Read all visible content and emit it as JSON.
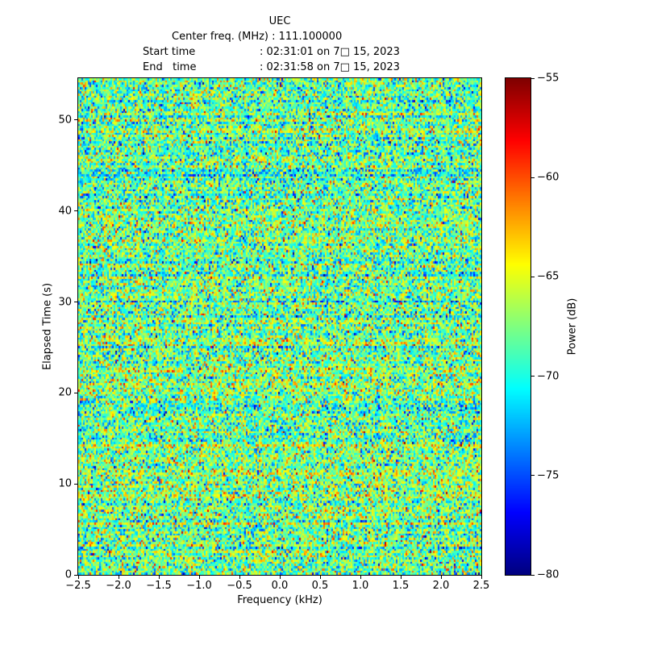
{
  "header": {
    "title": "UEC",
    "center_line": "Center freq. (MHz) : 111.100000",
    "start_label": "Start time",
    "start_value": ": 02:31:01 on 7□ 15, 2023",
    "end_label": "End   time",
    "end_value": ": 02:31:58 on 7□ 15, 2023"
  },
  "chart_data": {
    "type": "heatmap",
    "title": "UEC",
    "subtitle_lines": [
      "Center freq. (MHz) : 111.100000",
      "Start time            : 02:31:01 on 7□ 15, 2023",
      "End   time            : 02:31:58 on 7□ 15, 2023"
    ],
    "xlabel": "Frequency (kHz)",
    "ylabel": "Elapsed Time (s)",
    "xlim": [
      -2.5,
      2.5
    ],
    "ylim": [
      0,
      54.6
    ],
    "x_ticks": [
      {
        "value": -2.5,
        "label": "−2.5"
      },
      {
        "value": -2.0,
        "label": "−2.0"
      },
      {
        "value": -1.5,
        "label": "−1.5"
      },
      {
        "value": -1.0,
        "label": "−1.0"
      },
      {
        "value": -0.5,
        "label": "−0.5"
      },
      {
        "value": 0.0,
        "label": "0.0"
      },
      {
        "value": 0.5,
        "label": "0.5"
      },
      {
        "value": 1.0,
        "label": "1.0"
      },
      {
        "value": 1.5,
        "label": "1.5"
      },
      {
        "value": 2.0,
        "label": "2.0"
      },
      {
        "value": 2.5,
        "label": "2.5"
      }
    ],
    "y_ticks": [
      {
        "value": 0,
        "label": "0"
      },
      {
        "value": 10,
        "label": "10"
      },
      {
        "value": 20,
        "label": "20"
      },
      {
        "value": 30,
        "label": "30"
      },
      {
        "value": 40,
        "label": "40"
      },
      {
        "value": 50,
        "label": "50"
      }
    ],
    "colorbar": {
      "label": "Power (dB)",
      "colormap": "jet",
      "vmin": -80,
      "vmax": -55,
      "ticks": [
        {
          "value": -55,
          "label": "−55"
        },
        {
          "value": -60,
          "label": "−60"
        },
        {
          "value": -65,
          "label": "−65"
        },
        {
          "value": -70,
          "label": "−70"
        },
        {
          "value": -75,
          "label": "−75"
        },
        {
          "value": -80,
          "label": "−80"
        }
      ]
    },
    "noise": {
      "description": "broadband random noise floor spectrogram, no coherent signal",
      "seed": 20230715,
      "mean_db": -68.0,
      "std_db": 3.4,
      "row_jitter_db": 1.0,
      "col_jitter_db": 0.4,
      "rows": 228,
      "cols": 250
    }
  }
}
